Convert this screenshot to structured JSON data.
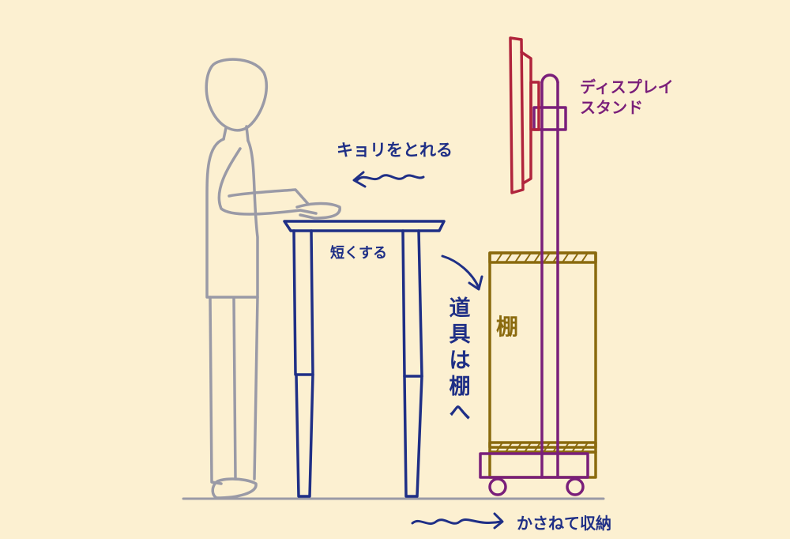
{
  "colors": {
    "background": "#fcf0d1",
    "person": "#9a9aa6",
    "desk": "#1f2f86",
    "shelf": "#8a6a0e",
    "stand": "#7a1f7a",
    "display": "#b0243c",
    "annotation": "#1f2f86"
  },
  "labels": {
    "display_stand_line1": "ディスプレイ",
    "display_stand_line2": "スタンド",
    "distance": "キョリをとれる",
    "shorten": "短くする",
    "shelf": "棚",
    "tools_to_shelf": [
      "道",
      "具",
      "は",
      "棚",
      "へ"
    ],
    "stack_storage": "かさねて収納"
  }
}
